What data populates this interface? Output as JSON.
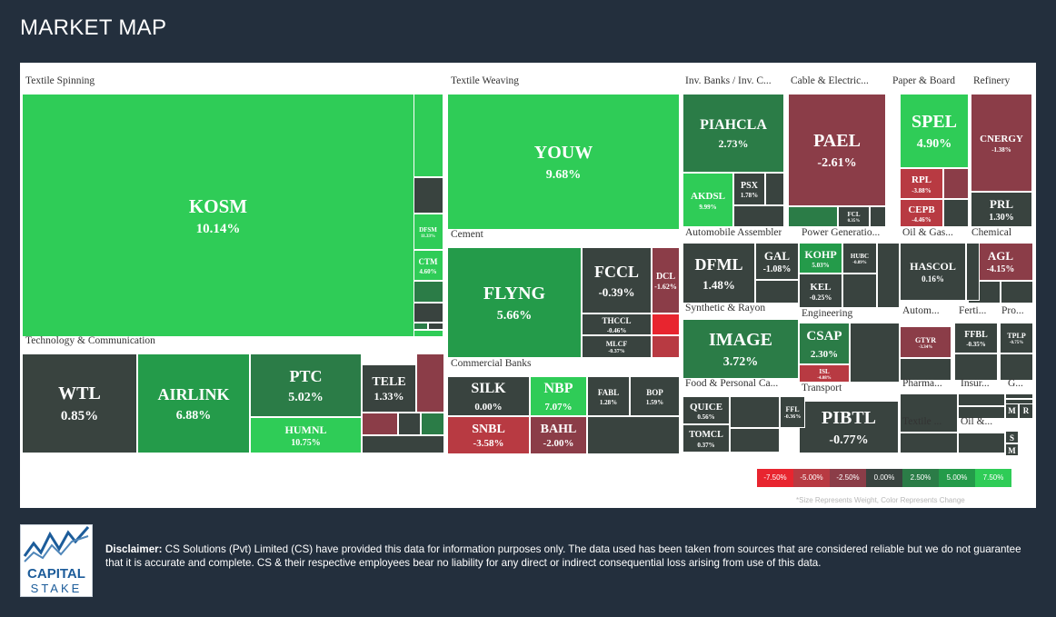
{
  "header": {
    "title": "MARKET MAP"
  },
  "colors": {
    "neg_strong": "#e8252f",
    "neg_mid": "#b83a42",
    "neg_weak": "#8b3d48",
    "neutral": "#39433f",
    "pos_weak": "#2b7c47",
    "pos_mid": "#249b4a",
    "pos_strong": "#2fcc57",
    "sec_pos": "#2fcc57",
    "sec_neg": "#8b3d48"
  },
  "sectors": [
    "Textile Spinning",
    "Technology & Communication",
    "Textile Weaving",
    "Cement",
    "Commercial Banks",
    "Inv. Banks / Inv. C...",
    "Cable & Electric...",
    "Paper & Board",
    "Refinery",
    "Automobile Assembler",
    "Power Generatio...",
    "Oil & Gas...",
    "Chemical",
    "Synthetic & Rayon",
    "Engineering",
    "Autom...",
    "Ferti...",
    "Pro...",
    "Food & Personal Ca...",
    "Transport",
    "Pharma...",
    "Insur...",
    "G...",
    "Textile ...",
    "Oil &..."
  ],
  "stocks": [
    {
      "name": "KOSM",
      "change": "10.14%"
    },
    {
      "name": "DFSM",
      "change": "11.33%"
    },
    {
      "name": "CTM",
      "change": "4.60%"
    },
    {
      "name": "WTL",
      "change": "0.85%"
    },
    {
      "name": "AIRLINK",
      "change": "6.88%"
    },
    {
      "name": "PTC",
      "change": "5.02%"
    },
    {
      "name": "HUMNL",
      "change": "10.75%"
    },
    {
      "name": "TELE",
      "change": "1.33%"
    },
    {
      "name": "YOUW",
      "change": "9.68%"
    },
    {
      "name": "FLYNG",
      "change": "5.66%"
    },
    {
      "name": "FCCL",
      "change": "-0.39%"
    },
    {
      "name": "DCL",
      "change": "-1.62%"
    },
    {
      "name": "THCCL",
      "change": "-0.46%"
    },
    {
      "name": "MLCF",
      "change": "-0.37%"
    },
    {
      "name": "SILK",
      "change": "0.00%"
    },
    {
      "name": "NBP",
      "change": "7.07%"
    },
    {
      "name": "FABL",
      "change": "1.28%"
    },
    {
      "name": "BOP",
      "change": "1.59%"
    },
    {
      "name": "SNBL",
      "change": "-3.58%"
    },
    {
      "name": "BAHL",
      "change": "-2.00%"
    },
    {
      "name": "PIAHCLA",
      "change": "2.73%"
    },
    {
      "name": "AKDSL",
      "change": "9.99%"
    },
    {
      "name": "PSX",
      "change": "1.78%"
    },
    {
      "name": "PAEL",
      "change": "-2.61%"
    },
    {
      "name": "FCL",
      "change": "0.35%"
    },
    {
      "name": "SPEL",
      "change": "4.90%"
    },
    {
      "name": "RPL",
      "change": "-3.88%"
    },
    {
      "name": "CEPB",
      "change": "-4.46%"
    },
    {
      "name": "CNERGY",
      "change": "-1.38%"
    },
    {
      "name": "PRL",
      "change": "1.30%"
    },
    {
      "name": "DFML",
      "change": "1.48%"
    },
    {
      "name": "GAL",
      "change": "-1.08%"
    },
    {
      "name": "KOHP",
      "change": "5.03%"
    },
    {
      "name": "HUBC",
      "change": "-0.89%"
    },
    {
      "name": "KEL",
      "change": "-0.25%"
    },
    {
      "name": "HASCOL",
      "change": "0.16%"
    },
    {
      "name": "AGL",
      "change": "-4.15%"
    },
    {
      "name": "IMAGE",
      "change": "3.72%"
    },
    {
      "name": "CSAP",
      "change": "2.30%"
    },
    {
      "name": "ISL",
      "change": "-4.08%"
    },
    {
      "name": "GTYR",
      "change": "-3.34%"
    },
    {
      "name": "FFBL",
      "change": "-0.35%"
    },
    {
      "name": "TPLP",
      "change": "-0.75%"
    },
    {
      "name": "QUICE",
      "change": "0.56%"
    },
    {
      "name": "FFL",
      "change": "-0.36%"
    },
    {
      "name": "TOMCL",
      "change": "0.37%"
    },
    {
      "name": "PIBTL",
      "change": "-0.77%"
    },
    {
      "name": "M",
      "change": ""
    },
    {
      "name": "R",
      "change": ""
    },
    {
      "name": "S",
      "change": ""
    },
    {
      "name": "M",
      "change": ""
    }
  ],
  "legend": {
    "labels": [
      "-7.50%",
      "-5.00%",
      "-2.50%",
      "0.00%",
      "2.50%",
      "5.00%",
      "7.50%"
    ],
    "colors": [
      "#e8252f",
      "#b83a42",
      "#8b3d48",
      "#39433f",
      "#2b7c47",
      "#249b4a",
      "#2fcc57"
    ],
    "note": "*Size Represents Weight, Color Represents Change"
  },
  "logo": {
    "line1": "CAPITAL",
    "line2": "STAKE"
  },
  "disclaimer": {
    "label": "Disclaimer:",
    "text": "CS Solutions (Pvt) Limited (CS) have provided this data for information purposes only. The data used has been taken from sources that are considered reliable but we do not guarantee that it is accurate and complete. CS & their respective employees bear no liability for any direct or indirect consequential loss arising from use of this data."
  }
}
